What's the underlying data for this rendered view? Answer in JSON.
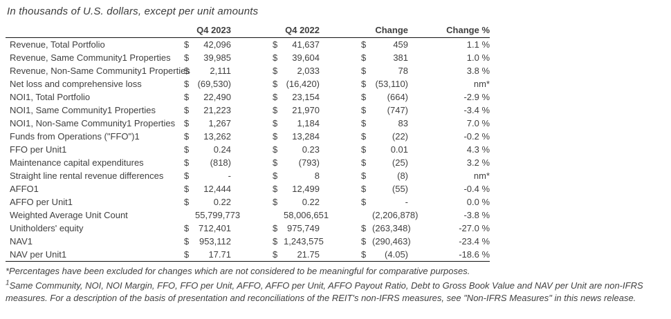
{
  "title": "In thousands of U.S. dollars, except per unit amounts",
  "table": {
    "columns": [
      "Q4 2023",
      "Q4 2022",
      "Change",
      "Change %"
    ],
    "rows": [
      {
        "label": "Revenue, Total Portfolio",
        "d1": "$",
        "v1": "42,096",
        "d2": "$",
        "v2": "41,637",
        "d3": "$",
        "v3": "459",
        "pct": "1.1 %"
      },
      {
        "label": "Revenue, Same Community1 Properties",
        "d1": "$",
        "v1": "39,985",
        "d2": "$",
        "v2": "39,604",
        "d3": "$",
        "v3": "381",
        "pct": "1.0 %"
      },
      {
        "label": "Revenue, Non-Same Community1 Properties",
        "d1": "$",
        "v1": "2,111",
        "d2": "$",
        "v2": "2,033",
        "d3": "$",
        "v3": "78",
        "pct": "3.8 %"
      },
      {
        "label": "Net loss and comprehensive loss",
        "d1": "$",
        "v1": "(69,530)",
        "d2": "$",
        "v2": "(16,420)",
        "d3": "$",
        "v3": "(53,110)",
        "pct": "nm*"
      },
      {
        "label": "NOI1, Total Portfolio",
        "d1": "$",
        "v1": "22,490",
        "d2": "$",
        "v2": "23,154",
        "d3": "$",
        "v3": "(664)",
        "pct": "-2.9 %"
      },
      {
        "label": "NOI1, Same Community1 Properties",
        "d1": "$",
        "v1": "21,223",
        "d2": "$",
        "v2": "21,970",
        "d3": "$",
        "v3": "(747)",
        "pct": "-3.4 %"
      },
      {
        "label": "NOI1, Non-Same Community1 Properties",
        "d1": "$",
        "v1": "1,267",
        "d2": "$",
        "v2": "1,184",
        "d3": "$",
        "v3": "83",
        "pct": "7.0 %"
      },
      {
        "label": "Funds from Operations (\"FFO\")1",
        "d1": "$",
        "v1": "13,262",
        "d2": "$",
        "v2": "13,284",
        "d3": "$",
        "v3": "(22)",
        "pct": "-0.2 %"
      },
      {
        "label": "FFO per Unit1",
        "d1": "$",
        "v1": "0.24",
        "d2": "$",
        "v2": "0.23",
        "d3": "$",
        "v3": "0.01",
        "pct": "4.3 %"
      },
      {
        "label": "Maintenance capital expenditures",
        "d1": "$",
        "v1": "(818)",
        "d2": "$",
        "v2": "(793)",
        "d3": "$",
        "v3": "(25)",
        "pct": "3.2 %"
      },
      {
        "label": "Straight line rental revenue differences",
        "d1": "$",
        "v1": "-",
        "d2": "$",
        "v2": "8",
        "d3": "$",
        "v3": "(8)",
        "pct": "nm*"
      },
      {
        "label": "AFFO1",
        "d1": "$",
        "v1": "12,444",
        "d2": "$",
        "v2": "12,499",
        "d3": "$",
        "v3": "(55)",
        "pct": "-0.4 %"
      },
      {
        "label": "AFFO per Unit1",
        "d1": "$",
        "v1": "0.22",
        "d2": "$",
        "v2": "0.22",
        "d3": "$",
        "v3": "-",
        "pct": "0.0 %"
      },
      {
        "label": "Weighted Average Unit Count",
        "d1": "",
        "v1": "55,799,773",
        "d2": "",
        "v2": "58,006,651",
        "d3": "",
        "v3": "(2,206,878)",
        "pct": "-3.8 %"
      },
      {
        "label": "Unitholders' equity",
        "d1": "$",
        "v1": "712,401",
        "d2": "$",
        "v2": "975,749",
        "d3": "$",
        "v3": "(263,348)",
        "pct": "-27.0 %"
      },
      {
        "label": "NAV1",
        "d1": "$",
        "v1": "953,112",
        "d2": "$",
        "v2": "1,243,575",
        "d3": "$",
        "v3": "(290,463)",
        "pct": "-23.4 %"
      },
      {
        "label": "NAV per Unit1",
        "d1": "$",
        "v1": "17.71",
        "d2": "$",
        "v2": "21.75",
        "d3": "$",
        "v3": "(4.05)",
        "pct": "-18.6 %"
      }
    ]
  },
  "footnotes": {
    "note_star": "*Percentages have been excluded for changes which are not considered to be meaningful for comparative purposes.",
    "note_1_marker": "1",
    "note_1_text": "Same Community, NOI, NOI Margin, FFO, FFO per Unit, AFFO, AFFO per Unit, AFFO Payout Ratio, Debt to Gross Book Value and NAV per Unit are non-IFRS measures. For a description of the basis of presentation and reconciliations of the REIT's non-IFRS measures, see \"Non-IFRS Measures\" in this news release."
  },
  "colors": {
    "text": "#3f3f3f",
    "rule_line": "#111111",
    "background": "#ffffff"
  }
}
